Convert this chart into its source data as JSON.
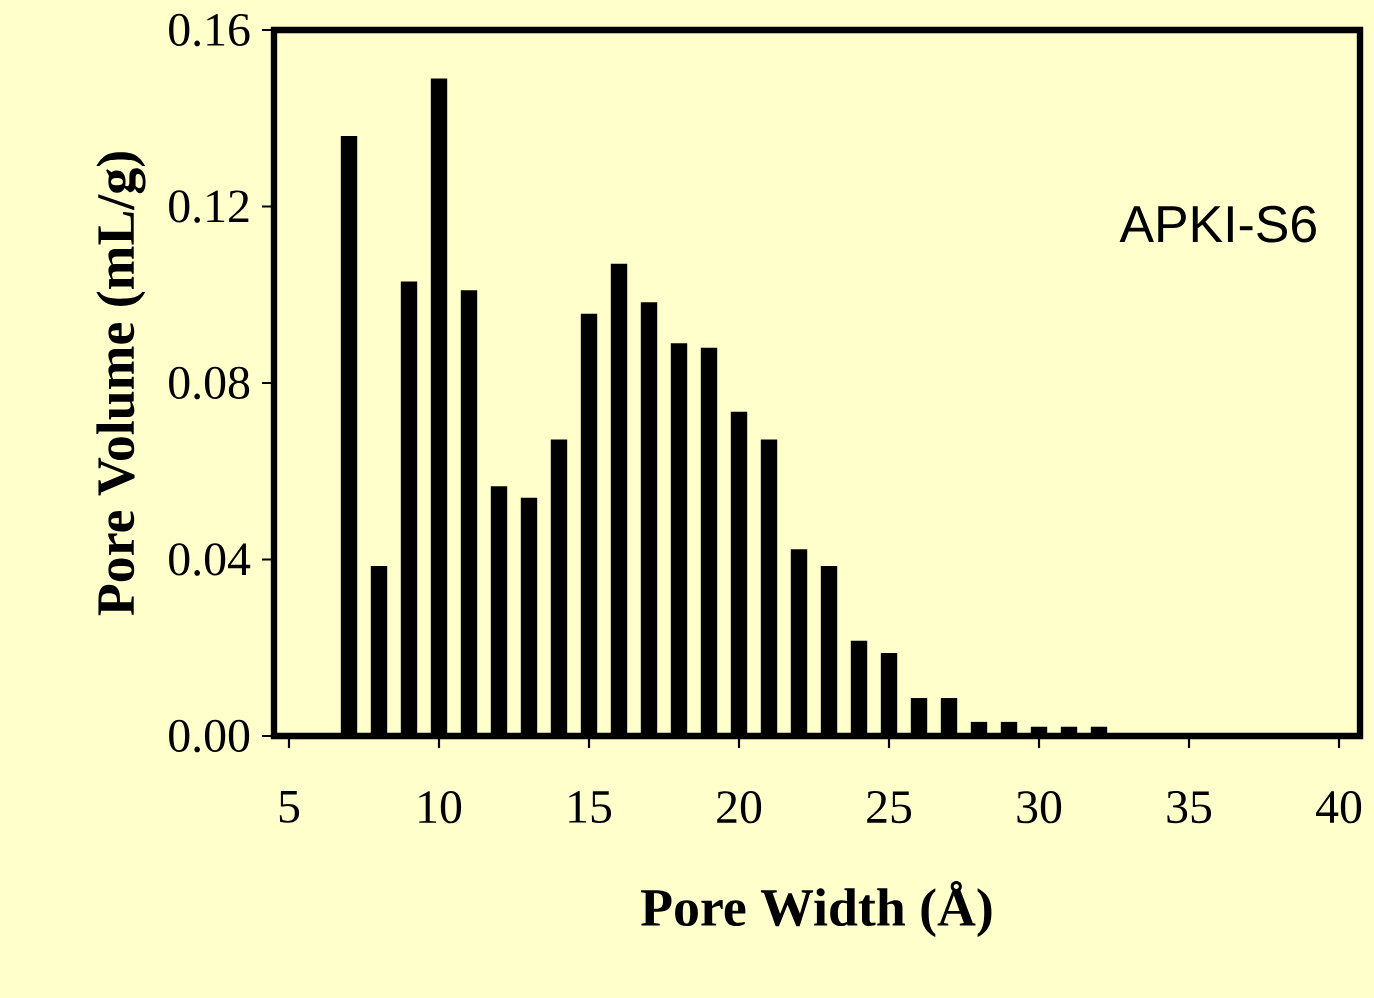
{
  "chart_data": {
    "type": "bar",
    "xlabel": "Pore Width (Å)",
    "ylabel": "Pore Volume (mL/g)",
    "annotations": [
      "APKI-S6"
    ],
    "x": [
      7,
      8,
      9,
      10,
      11,
      12,
      13,
      14,
      15,
      16,
      17,
      18,
      19,
      20,
      21,
      22,
      23,
      24,
      25,
      26,
      27,
      28,
      29,
      30,
      31,
      32
    ],
    "series": [
      {
        "color": "#000000",
        "values": [
          0.136,
          0.0385,
          0.103,
          0.149,
          0.101,
          0.0566,
          0.054,
          0.0672,
          0.0957,
          0.107,
          0.0983,
          0.089,
          0.088,
          0.0735,
          0.0672,
          0.0423,
          0.0385,
          0.0216,
          0.0188,
          0.0086,
          0.0086,
          0.0032,
          0.0032,
          0.0021,
          0.0021,
          0.0021
        ]
      }
    ],
    "xlim": [
      4.5,
      40.7
    ],
    "ylim": [
      0,
      0.16
    ],
    "xticks": [
      5,
      10,
      15,
      20,
      25,
      30,
      35,
      40
    ],
    "yticks": [
      {
        "value": 0,
        "label": "0.00"
      },
      {
        "value": 0.04,
        "label": "0.04"
      },
      {
        "value": 0.08,
        "label": "0.08"
      },
      {
        "value": 0.12,
        "label": "0.12"
      },
      {
        "value": 0.16,
        "label": "0.16"
      }
    ]
  }
}
